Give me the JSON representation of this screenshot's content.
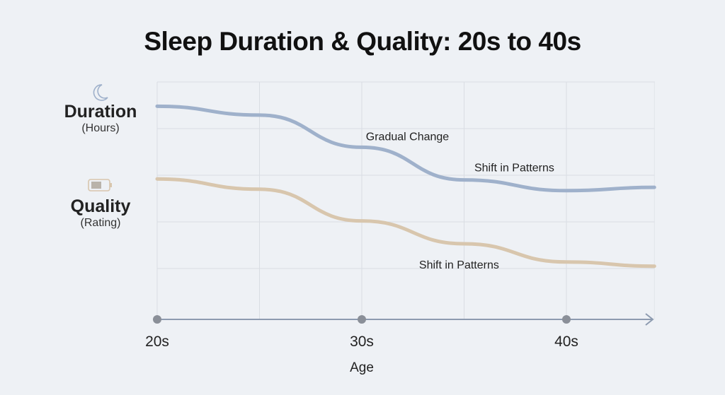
{
  "chart_data": {
    "type": "line",
    "title": "Sleep Duration & Quality: 20s to 40s",
    "xlabel": "Age",
    "x_ticks": [
      {
        "label": "20s",
        "x": 20
      },
      {
        "label": "30s",
        "x": 30
      },
      {
        "label": "40s",
        "x": 40
      }
    ],
    "xlim": [
      20,
      44.3
    ],
    "ylim": [
      0,
      5
    ],
    "grid": true,
    "series": [
      {
        "name": "Duration",
        "unit": "(Hours)",
        "icon": "moon-icon",
        "color": "#9fb1cb",
        "x": [
          20,
          25,
          30,
          35,
          40,
          44.3
        ],
        "values": [
          4.48,
          4.29,
          3.6,
          2.9,
          2.67,
          2.74
        ]
      },
      {
        "name": "Quality",
        "unit": "(Rating)",
        "icon": "battery-icon",
        "color": "#d8c6ad",
        "x": [
          20,
          25,
          30,
          35,
          40,
          44.3
        ],
        "values": [
          2.92,
          2.7,
          2.02,
          1.53,
          1.14,
          1.05
        ]
      }
    ],
    "annotations": [
      {
        "text": "Gradual Change",
        "x": 30.2,
        "y": 3.75
      },
      {
        "text": "Shift in Patterns",
        "x": 35.5,
        "y": 3.08
      },
      {
        "text": "Shift in Patterns",
        "x": 32.8,
        "y": 1.0
      }
    ]
  }
}
